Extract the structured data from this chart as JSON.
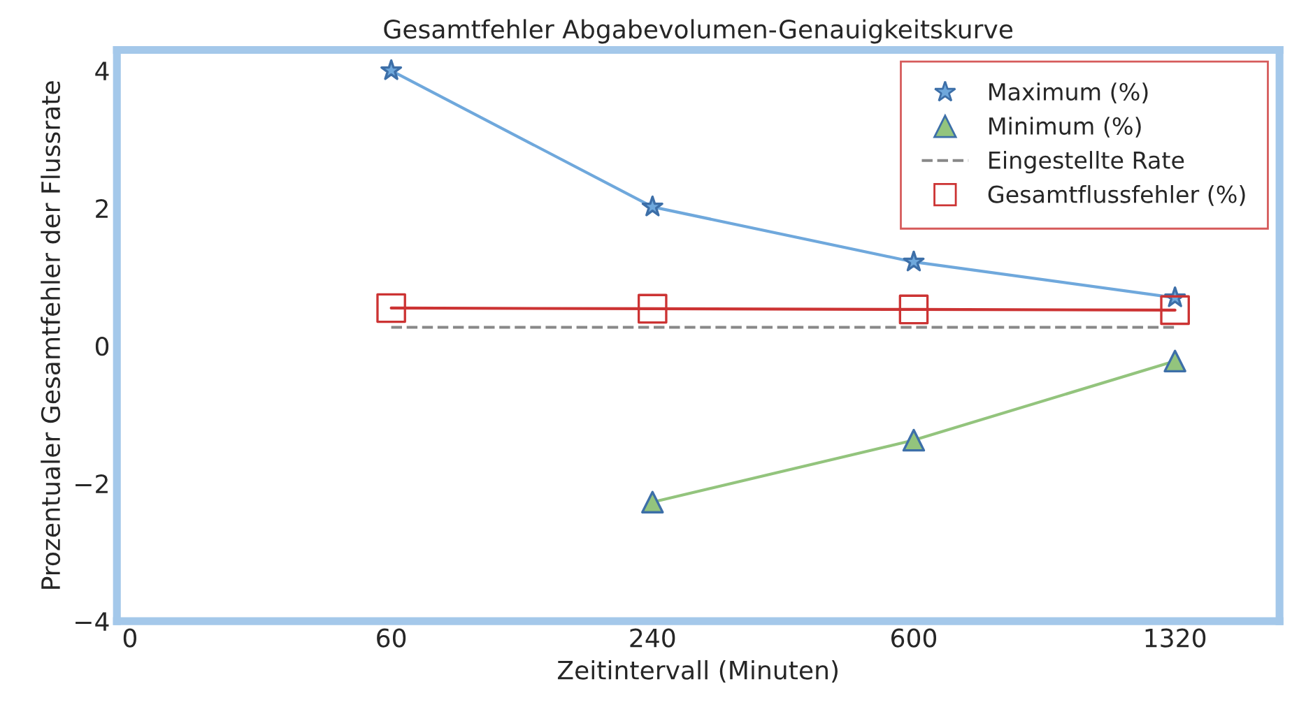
{
  "chart_data": {
    "type": "line",
    "title": "Gesamtfehler Abgabevolumen-Genauigkeitskurve",
    "xlabel": "Zeitintervall (Minuten)",
    "ylabel": "Prozentualer Gesamtfehler der Flussrate",
    "categories": [
      "0",
      "60",
      "240",
      "600",
      "1320"
    ],
    "series": [
      {
        "name": "Maximum (%)",
        "color": "#6fa8dc",
        "marker": "star",
        "line_style": "solid",
        "values": [
          null,
          4.0,
          2.02,
          1.22,
          0.7
        ]
      },
      {
        "name": "Minimum (%)",
        "color": "#93c47d",
        "marker": "triangle",
        "line_style": "solid",
        "values": [
          null,
          null,
          -2.27,
          -1.37,
          -0.22
        ]
      },
      {
        "name": "Eingestellte Rate",
        "color": "#888888",
        "marker": "none",
        "line_style": "dashed",
        "values": [
          null,
          0.27,
          0.27,
          0.27,
          0.27
        ]
      },
      {
        "name": "Gesamtflussfehler (%)",
        "color": "#cc3333",
        "marker": "square",
        "line_style": "solid",
        "values": [
          null,
          0.55,
          0.54,
          0.53,
          0.52
        ]
      }
    ],
    "ylim": [
      -4,
      4.3
    ],
    "yticks": [
      {
        "value": -4,
        "label": "−4"
      },
      {
        "value": -2,
        "label": "−2"
      },
      0,
      2,
      4
    ],
    "grid": false,
    "legend": "top right"
  }
}
